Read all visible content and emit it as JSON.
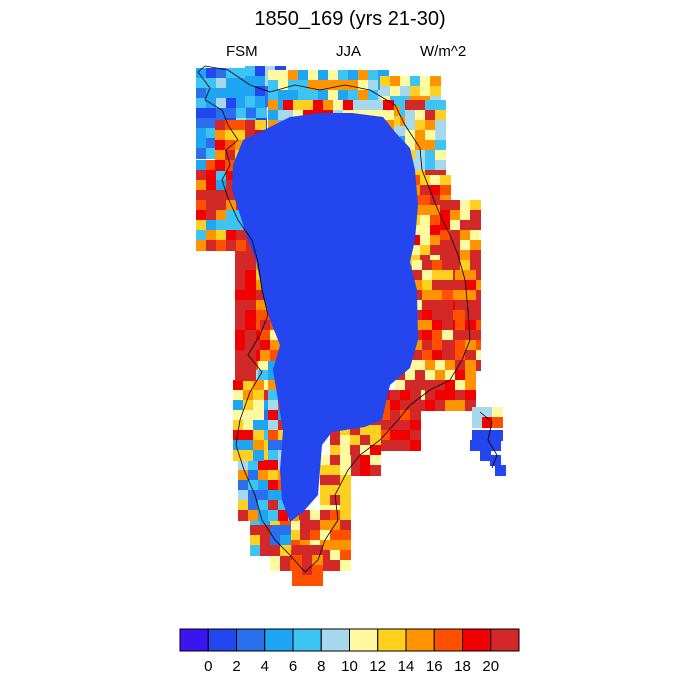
{
  "figure": {
    "title": "1850_169 (yrs 21-30)",
    "left_string": "FSM",
    "center_string": "JJA",
    "right_string": "W/m^2"
  },
  "colorbar": {
    "colors": [
      "#3c14f0",
      "#2446ee",
      "#2a6fee",
      "#1ea6f5",
      "#3ec3f5",
      "#a8d8ee",
      "#fffaa0",
      "#ffd020",
      "#ff9400",
      "#ff5000",
      "#f00000",
      "#d22828"
    ],
    "levels": [
      0,
      2,
      4,
      6,
      8,
      10,
      12,
      14,
      16,
      18,
      20
    ],
    "labels": [
      "0",
      "2",
      "4",
      "6",
      "8",
      "10",
      "12",
      "14",
      "16",
      "18",
      "20"
    ]
  },
  "map_data": {
    "variable": "FSM",
    "season": "JJA",
    "units": "W/m^2",
    "region": "Greenland",
    "interior_value_range": [
      0,
      2
    ],
    "margin_value_range": [
      2,
      22
    ],
    "coastline": true
  }
}
